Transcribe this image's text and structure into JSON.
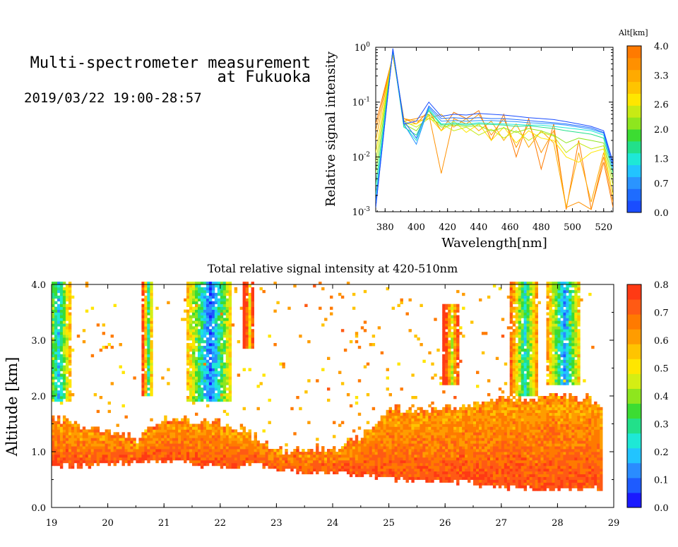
{
  "header": {
    "title_line1": "Multi-spectrometer measurement",
    "title_line2": "at Fukuoka",
    "datetime": "2019/03/22 19:00-28:57"
  },
  "colors": {
    "scale": [
      "#1a1aff",
      "#1e5bff",
      "#2a8cff",
      "#22c4ff",
      "#1ee8d6",
      "#22e08a",
      "#3cdc32",
      "#8ee61e",
      "#d4ee14",
      "#ffe600",
      "#ffc400",
      "#ff9c00",
      "#ff7a00",
      "#ff5a14",
      "#ff3a14"
    ],
    "alt_scale": [
      "#1a4dff",
      "#1e6cff",
      "#2a94ff",
      "#22c4ff",
      "#1ee8d6",
      "#22e08a",
      "#3cdc32",
      "#8ee61e",
      "#c8ea14",
      "#ffe600",
      "#ffc400",
      "#ffaa00",
      "#ff9000",
      "#ff7a00"
    ]
  },
  "chart_data": [
    {
      "type": "line",
      "title": "",
      "xlabel": "Wavelength[nm]",
      "ylabel": "Relative signal intensity",
      "xlim": [
        374,
        526
      ],
      "ylim": [
        0.001,
        1
      ],
      "yscale": "log",
      "x_ticks": [
        380,
        400,
        420,
        440,
        460,
        480,
        500,
        520
      ],
      "y_ticks": [
        {
          "base": "10",
          "exp": "0",
          "value": 1
        },
        {
          "base": "10",
          "exp": "-1",
          "value": 0.1
        },
        {
          "base": "10",
          "exp": "-2",
          "value": 0.01
        },
        {
          "base": "10",
          "exp": "-3",
          "value": 0.001
        }
      ],
      "colorbar": {
        "label": "Alt[km]",
        "range": [
          0.0,
          4.0
        ],
        "tick_labels": [
          "4.0",
          "3.3",
          "2.6",
          "2.0",
          "1.3",
          "0.7",
          "0.0"
        ],
        "tick_values": [
          4.0,
          3.3,
          2.6,
          2.0,
          1.3,
          0.7,
          0.0
        ]
      },
      "x": [
        374,
        385,
        392,
        400,
        408,
        416,
        424,
        432,
        440,
        448,
        456,
        464,
        472,
        480,
        488,
        496,
        504,
        512,
        520,
        526
      ],
      "series": [
        {
          "alt": 0.0,
          "values": [
            0.0012,
            0.95,
            0.04,
            0.045,
            0.1,
            0.055,
            0.06,
            0.058,
            0.062,
            0.06,
            0.058,
            0.055,
            0.052,
            0.05,
            0.048,
            0.044,
            0.04,
            0.036,
            0.03,
            0.008
          ]
        },
        {
          "alt": 0.4,
          "values": [
            0.0012,
            0.92,
            0.045,
            0.022,
            0.085,
            0.05,
            0.052,
            0.05,
            0.052,
            0.05,
            0.05,
            0.048,
            0.046,
            0.044,
            0.042,
            0.04,
            0.037,
            0.034,
            0.028,
            0.007
          ]
        },
        {
          "alt": 0.8,
          "values": [
            0.0015,
            0.9,
            0.04,
            0.017,
            0.08,
            0.045,
            0.046,
            0.045,
            0.046,
            0.046,
            0.045,
            0.044,
            0.042,
            0.041,
            0.04,
            0.038,
            0.035,
            0.032,
            0.027,
            0.006
          ]
        },
        {
          "alt": 1.2,
          "values": [
            0.002,
            0.88,
            0.038,
            0.02,
            0.075,
            0.04,
            0.042,
            0.04,
            0.042,
            0.041,
            0.04,
            0.039,
            0.038,
            0.038,
            0.036,
            0.034,
            0.032,
            0.03,
            0.025,
            0.006
          ]
        },
        {
          "alt": 1.6,
          "values": [
            0.003,
            0.85,
            0.035,
            0.025,
            0.07,
            0.038,
            0.04,
            0.038,
            0.04,
            0.039,
            0.038,
            0.036,
            0.037,
            0.035,
            0.033,
            0.03,
            0.028,
            0.026,
            0.022,
            0.005
          ]
        },
        {
          "alt": 2.0,
          "values": [
            0.005,
            0.82,
            0.04,
            0.03,
            0.06,
            0.035,
            0.038,
            0.036,
            0.037,
            0.03,
            0.034,
            0.028,
            0.033,
            0.03,
            0.025,
            0.018,
            0.022,
            0.02,
            0.018,
            0.004
          ]
        },
        {
          "alt": 2.4,
          "values": [
            0.008,
            0.8,
            0.045,
            0.035,
            0.05,
            0.04,
            0.03,
            0.035,
            0.025,
            0.032,
            0.022,
            0.03,
            0.02,
            0.028,
            0.024,
            0.012,
            0.018,
            0.014,
            0.016,
            0.003
          ]
        },
        {
          "alt": 2.8,
          "values": [
            0.012,
            0.78,
            0.04,
            0.04,
            0.055,
            0.03,
            0.045,
            0.028,
            0.04,
            0.02,
            0.035,
            0.018,
            0.03,
            0.022,
            0.02,
            0.01,
            0.008,
            0.012,
            0.014,
            0.002
          ]
        },
        {
          "alt": 3.2,
          "values": [
            0.02,
            0.75,
            0.05,
            0.045,
            0.05,
            0.06,
            0.035,
            0.05,
            0.03,
            0.045,
            0.02,
            0.04,
            0.015,
            0.03,
            0.018,
            0.0012,
            0.012,
            0.0015,
            0.012,
            0.002
          ]
        },
        {
          "alt": 3.6,
          "values": [
            0.03,
            0.72,
            0.045,
            0.05,
            0.06,
            0.005,
            0.05,
            0.04,
            0.06,
            0.025,
            0.05,
            0.015,
            0.04,
            0.012,
            0.03,
            0.0012,
            0.0015,
            0.0011,
            0.01,
            0.0015
          ]
        },
        {
          "alt": 4.0,
          "values": [
            0.04,
            0.7,
            0.05,
            0.04,
            0.07,
            0.03,
            0.065,
            0.05,
            0.07,
            0.02,
            0.06,
            0.01,
            0.05,
            0.006,
            0.04,
            0.0011,
            0.02,
            0.0011,
            0.008,
            0.0012
          ]
        }
      ]
    },
    {
      "type": "heatmap",
      "title": "Total relative signal intensity at 420-510nm",
      "xlabel": "",
      "ylabel": "Altitude [km]",
      "xlim": [
        19,
        29
      ],
      "ylim": [
        0.0,
        4.0
      ],
      "x_ticks": [
        "19",
        "20",
        "21",
        "22",
        "23",
        "24",
        "25",
        "26",
        "27",
        "28",
        "29"
      ],
      "y_ticks": [
        "0.0",
        "1.0",
        "2.0",
        "3.0",
        "4.0"
      ],
      "colorbar": {
        "range": [
          0.0,
          0.8
        ],
        "tick_labels": [
          "0.8",
          "0.7",
          "0.6",
          "0.5",
          "0.4",
          "0.3",
          "0.2",
          "0.1",
          "0.0"
        ],
        "tick_values": [
          0.8,
          0.7,
          0.6,
          0.5,
          0.4,
          0.3,
          0.2,
          0.1,
          0.0
        ]
      },
      "data_end": 28.8,
      "boundary_layer": {
        "hours": [
          19.0,
          19.5,
          20.0,
          20.5,
          21.0,
          21.5,
          22.0,
          22.5,
          23.0,
          23.5,
          24.0,
          24.5,
          25.0,
          25.5,
          26.0,
          26.5,
          27.0,
          27.5,
          28.0,
          28.5,
          28.8
        ],
        "top_km": [
          1.6,
          1.45,
          1.35,
          1.2,
          1.6,
          1.55,
          1.5,
          1.3,
          1.0,
          1.0,
          1.05,
          1.25,
          1.8,
          1.7,
          1.75,
          1.8,
          1.9,
          1.95,
          2.0,
          1.95,
          1.75
        ],
        "base_km": [
          0.75,
          0.7,
          0.75,
          0.8,
          0.8,
          0.75,
          0.7,
          0.75,
          0.65,
          0.6,
          0.6,
          0.55,
          0.5,
          0.45,
          0.45,
          0.4,
          0.35,
          0.3,
          0.3,
          0.3,
          0.35
        ]
      },
      "cloud_columns": [
        {
          "hour": 19.1,
          "width": 0.5,
          "bottom_km": 1.9,
          "top_km": 4.0,
          "peak": 0.2
        },
        {
          "hour": 20.7,
          "width": 0.2,
          "bottom_km": 2.0,
          "top_km": 4.0,
          "peak": 0.3
        },
        {
          "hour": 21.8,
          "width": 0.8,
          "bottom_km": 1.9,
          "top_km": 4.0,
          "peak": 0.1
        },
        {
          "hour": 22.5,
          "width": 0.2,
          "bottom_km": 2.8,
          "top_km": 4.0,
          "peak": 0.5
        },
        {
          "hour": 26.1,
          "width": 0.3,
          "bottom_km": 2.2,
          "top_km": 3.6,
          "peak": 0.45
        },
        {
          "hour": 27.4,
          "width": 0.5,
          "bottom_km": 2.0,
          "top_km": 4.0,
          "peak": 0.25
        },
        {
          "hour": 28.1,
          "width": 0.6,
          "bottom_km": 2.2,
          "top_km": 4.0,
          "peak": 0.15
        }
      ]
    }
  ]
}
